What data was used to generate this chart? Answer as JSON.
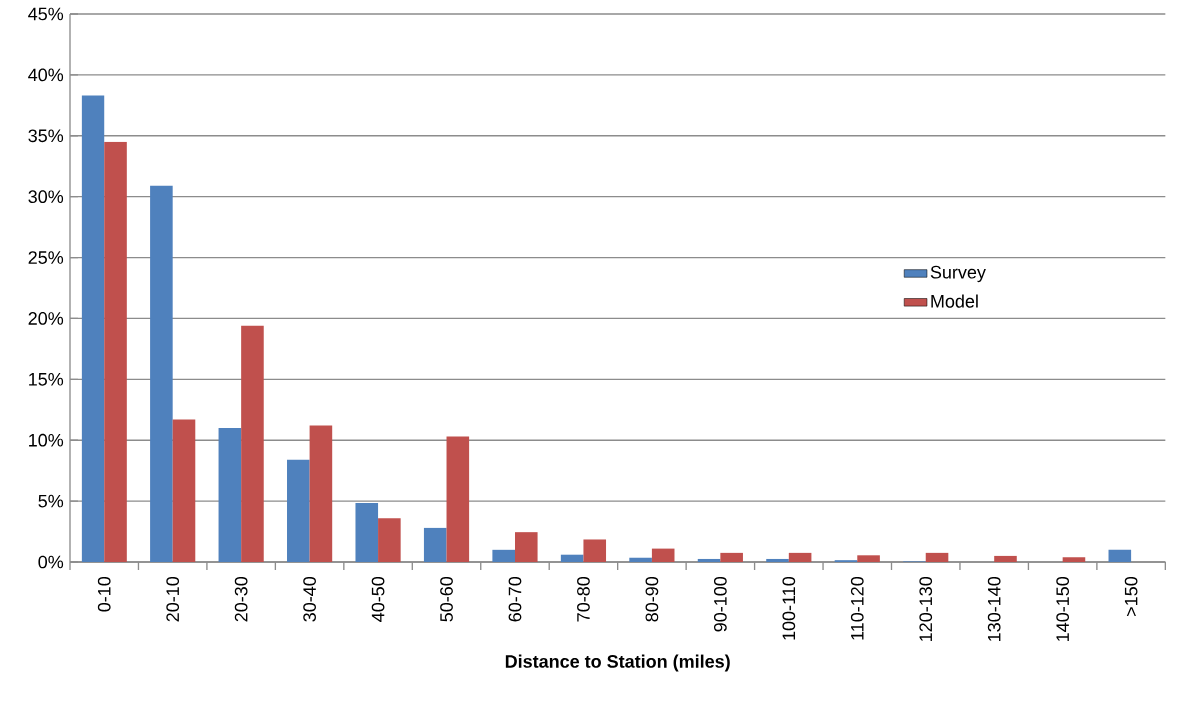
{
  "chart_data": {
    "type": "bar",
    "xlabel": "Distance to Station (miles)",
    "categories": [
      "0-10",
      "20-10",
      "20-30",
      "30-40",
      "40-50",
      "50-60",
      "60-70",
      "70-80",
      "80-90",
      "90-100",
      "100-110",
      "110-120",
      "120-130",
      "130-140",
      "140-150",
      ">150"
    ],
    "series": [
      {
        "name": "Survey",
        "color": "#4f81bd",
        "values": [
          38.3,
          30.9,
          11.0,
          8.4,
          4.85,
          2.8,
          1.0,
          0.6,
          0.35,
          0.25,
          0.25,
          0.15,
          0.05,
          0,
          0,
          1.0
        ]
      },
      {
        "name": "Model",
        "color": "#c0504d",
        "values": [
          34.5,
          11.7,
          19.4,
          11.2,
          3.6,
          10.3,
          2.45,
          1.85,
          1.1,
          0.75,
          0.75,
          0.55,
          0.75,
          0.5,
          0.4,
          0
        ]
      }
    ],
    "ylim": [
      0,
      45
    ],
    "yticks": [
      {
        "value": 0,
        "label": "0%"
      },
      {
        "value": 5,
        "label": "5%"
      },
      {
        "value": 10,
        "label": "10%"
      },
      {
        "value": 15,
        "label": "15%"
      },
      {
        "value": 20,
        "label": "20%"
      },
      {
        "value": 25,
        "label": "25%"
      },
      {
        "value": 30,
        "label": "30%"
      },
      {
        "value": 35,
        "label": "35%"
      },
      {
        "value": 40,
        "label": "40%"
      },
      {
        "value": 45,
        "label": "45%"
      }
    ],
    "grid": "y",
    "legend": "right"
  }
}
